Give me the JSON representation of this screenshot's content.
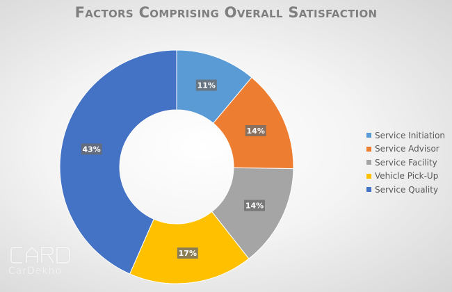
{
  "title": "Factors Comprising Overall Satisfaction",
  "chart_data": {
    "type": "pie",
    "donut": true,
    "title": "Factors Comprising Overall Satisfaction",
    "categories": [
      "Service Initiation",
      "Service Advisor",
      "Service Facility",
      "Vehicle Pick-Up",
      "Service Quality"
    ],
    "values": [
      11,
      14,
      14,
      17,
      43
    ],
    "labels": [
      "11%",
      "14%",
      "14%",
      "17%",
      "43%"
    ],
    "colors": [
      "#5b9bd5",
      "#ed7d31",
      "#a5a5a5",
      "#ffc000",
      "#4472c4"
    ],
    "legend_position": "right"
  },
  "watermark": {
    "text": "CarDekho",
    "icon": "car-outline-icon"
  }
}
